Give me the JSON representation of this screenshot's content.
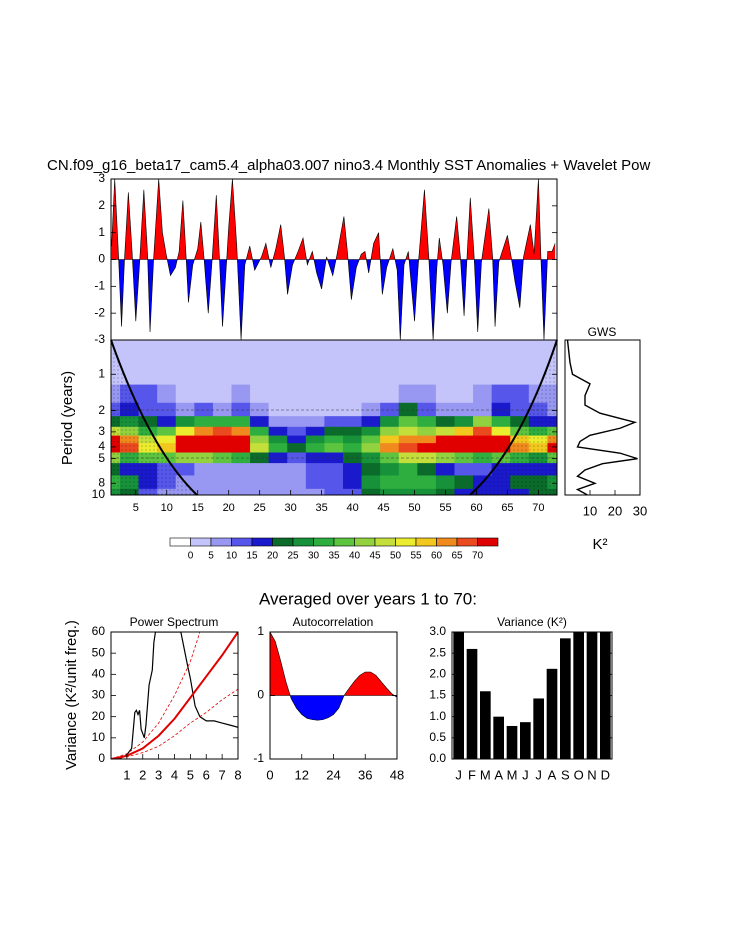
{
  "section_title": "Averaged over years 1 to 70:",
  "chart_data": [
    {
      "type": "area",
      "title": "CN.f09_g16_beta17_cam5.4_alpha03.007 nino3.4 Monthly SST Anomalies + Wavelet Pow",
      "positive_color": "#ff0000",
      "negative_color": "#0000ff",
      "xlim": [
        1,
        73
      ],
      "ylim": [
        -3,
        3
      ],
      "yticks": [
        -3,
        -2,
        -1,
        0,
        1,
        2,
        3
      ],
      "x": [
        1.1,
        1.6,
        2.2,
        2.7,
        3.2,
        3.8,
        4.4,
        5.0,
        5.6,
        6.3,
        6.9,
        7.3,
        7.9,
        8.7,
        9.3,
        9.9,
        10.6,
        11.4,
        12.0,
        12.6,
        13.1,
        13.5,
        14.2,
        15.0,
        15.5,
        16.0,
        16.7,
        17.3,
        18.0,
        18.5,
        19.0,
        19.6,
        20.0,
        20.6,
        21.3,
        22.0,
        22.6,
        23.4,
        24.2,
        25.3,
        26.0,
        26.8,
        27.6,
        28.4,
        29.0,
        29.5,
        30.3,
        31.2,
        32.0,
        32.7,
        33.5,
        34.2,
        35.0,
        35.8,
        36.8,
        37.5,
        38.6,
        39.2,
        39.8,
        40.6,
        41.4,
        42.0,
        42.6,
        43.4,
        44.2,
        44.8,
        45.5,
        46.5,
        47.2,
        47.7,
        48.3,
        49.0,
        50.0,
        50.6,
        51.6,
        52.3,
        53.0,
        53.6,
        54.0,
        54.6,
        55.3,
        55.9,
        56.8,
        57.4,
        58.0,
        58.5,
        59.0,
        59.6,
        60.2,
        60.8,
        62.0,
        62.6,
        63.0,
        63.6,
        65.0,
        65.6,
        66.2,
        67.0,
        67.6,
        68.7,
        69.3,
        70.0,
        70.4,
        70.9,
        71.5,
        72.2,
        72.7
      ],
      "values": [
        0.5,
        3,
        0.2,
        -2.5,
        0.1,
        2.5,
        0.3,
        -2.3,
        -0.2,
        2.6,
        0.2,
        -2.7,
        0.1,
        3,
        1,
        0.2,
        -0.6,
        -0.3,
        0.3,
        2.2,
        0.2,
        -1.6,
        -0.2,
        0.4,
        1.4,
        0.1,
        -2,
        -0.1,
        2.4,
        0.1,
        -2.5,
        -0.3,
        1.2,
        3,
        0.5,
        -3,
        -0.2,
        0.5,
        -0.4,
        0.1,
        0.6,
        -0.3,
        0.4,
        1.3,
        0.1,
        -1.3,
        -0.2,
        0.3,
        0.8,
        -0.2,
        0.3,
        -0.5,
        -1.1,
        0.1,
        -0.6,
        0.2,
        1.6,
        0.2,
        -1.5,
        -0.3,
        0.2,
        0.3,
        -0.5,
        0.6,
        1.0,
        -1.3,
        -0.3,
        0.4,
        -0.4,
        -3,
        -0.2,
        0.3,
        -2.3,
        -0.2,
        2.6,
        0.1,
        -3,
        -0.3,
        0.8,
        -0.2,
        -2,
        -0.1,
        1.6,
        0.1,
        -2.1,
        0.2,
        2.3,
        0.2,
        -2.7,
        -0.1,
        1.9,
        0.1,
        -2.5,
        -0.1,
        0.9,
        0.1,
        -0.8,
        -1.8,
        0.1,
        1.3,
        0.2,
        3,
        0.1,
        -3,
        0.3,
        0.3,
        0.6
      ]
    },
    {
      "type": "heatmap",
      "y_label": "Period (years)",
      "xlim": [
        1,
        73
      ],
      "xticks": [
        5,
        10,
        15,
        20,
        25,
        30,
        35,
        40,
        45,
        50,
        55,
        60,
        65,
        70
      ],
      "ylim": [
        0.52,
        10
      ],
      "log_y": true,
      "y_reversed": true,
      "yticks": [
        1,
        2,
        3,
        4,
        5,
        8,
        10
      ],
      "x": [
        1,
        4,
        7,
        10,
        13,
        16,
        19,
        22,
        25,
        28,
        31,
        34,
        37,
        40,
        43,
        46,
        49,
        52,
        55,
        58,
        61,
        64,
        67,
        70,
        73
      ],
      "periods": [
        1,
        1.5,
        2,
        2.5,
        3,
        3.5,
        4,
        5,
        6,
        8,
        10
      ],
      "z": [
        [
          3,
          3,
          3,
          3,
          3,
          3,
          3,
          3,
          3,
          3,
          3,
          3,
          3,
          3,
          3,
          3,
          3,
          3,
          3,
          3,
          3,
          3,
          3,
          3,
          3
        ],
        [
          8,
          14,
          12,
          6,
          4,
          4,
          4,
          6,
          4,
          3,
          3,
          3,
          3,
          3,
          3,
          4,
          8,
          6,
          4,
          4,
          6,
          14,
          12,
          8,
          6
        ],
        [
          10,
          18,
          14,
          12,
          8,
          12,
          8,
          10,
          6,
          4,
          3,
          4,
          4,
          4,
          6,
          12,
          20,
          10,
          8,
          6,
          8,
          18,
          14,
          12,
          8
        ],
        [
          20,
          25,
          20,
          15,
          25,
          30,
          30,
          30,
          15,
          8,
          6,
          8,
          10,
          12,
          15,
          25,
          35,
          30,
          20,
          25,
          40,
          30,
          20,
          15,
          15
        ],
        [
          45,
          40,
          30,
          35,
          50,
          60,
          65,
          60,
          30,
          15,
          10,
          15,
          20,
          20,
          25,
          40,
          45,
          40,
          45,
          55,
          65,
          50,
          35,
          30,
          35
        ],
        [
          70,
          60,
          45,
          50,
          70,
          75,
          75,
          70,
          40,
          25,
          18,
          25,
          30,
          28,
          35,
          55,
          60,
          60,
          70,
          72,
          75,
          70,
          55,
          50,
          60
        ],
        [
          75,
          65,
          50,
          55,
          72,
          75,
          75,
          72,
          45,
          30,
          20,
          30,
          35,
          30,
          40,
          60,
          65,
          70,
          72,
          75,
          75,
          72,
          60,
          55,
          72
        ],
        [
          40,
          30,
          35,
          35,
          40,
          40,
          35,
          30,
          20,
          15,
          12,
          15,
          18,
          20,
          25,
          35,
          45,
          45,
          40,
          35,
          30,
          35,
          30,
          25,
          35
        ],
        [
          20,
          15,
          15,
          12,
          10,
          8,
          8,
          8,
          8,
          8,
          8,
          10,
          12,
          15,
          20,
          25,
          30,
          20,
          15,
          12,
          12,
          15,
          15,
          15,
          18
        ],
        [
          30,
          25,
          15,
          10,
          8,
          6,
          6,
          6,
          6,
          6,
          8,
          10,
          14,
          18,
          25,
          30,
          32,
          30,
          25,
          20,
          18,
          18,
          20,
          22,
          25
        ],
        [
          25,
          20,
          12,
          8,
          6,
          5,
          5,
          5,
          5,
          5,
          6,
          8,
          10,
          14,
          20,
          25,
          25,
          25,
          22,
          18,
          15,
          15,
          18,
          20,
          22
        ]
      ],
      "levels": [
        0,
        5,
        10,
        15,
        20,
        25,
        30,
        35,
        40,
        45,
        50,
        55,
        60,
        65,
        70
      ],
      "colors": [
        "#ffffff",
        "#c4c4fa",
        "#9898f2",
        "#5656ea",
        "#1a1acc",
        "#0b6b2a",
        "#17923a",
        "#2eae3e",
        "#5cc43e",
        "#92d23e",
        "#c4de3a",
        "#ecec2e",
        "#f2c81e",
        "#f08a1e",
        "#ea4a1e",
        "#e00000"
      ]
    },
    {
      "type": "line",
      "orientation": "horizontal",
      "title": "GWS",
      "x_label": "K²",
      "xlim": [
        0,
        30
      ],
      "xticks": [
        10,
        20,
        30
      ],
      "ylim": [
        0.52,
        10
      ],
      "log_y": true,
      "y_reversed": true,
      "periods": [
        0.52,
        0.8,
        1,
        1.2,
        1.5,
        1.8,
        2.1,
        2.5,
        2.8,
        3.2,
        3.6,
        4.0,
        4.5,
        5.0,
        5.5,
        6.2,
        7,
        8,
        9,
        10
      ],
      "values": [
        1,
        2,
        3,
        10,
        8,
        8,
        14,
        28,
        22,
        10,
        6,
        5,
        22,
        29,
        15,
        8,
        5,
        12,
        5,
        9
      ],
      "color": "#000000"
    },
    {
      "type": "line",
      "title": "Power Spectrum",
      "y_label": "Variance (K²/unit freq.)",
      "xlim": [
        0,
        8
      ],
      "xticks": [
        1,
        2,
        3,
        4,
        5,
        6,
        7,
        8
      ],
      "ylim": [
        0,
        60
      ],
      "yticks": [
        0,
        10,
        20,
        30,
        40,
        50,
        60
      ],
      "series": [
        {
          "color": "#000000",
          "width": 1.2,
          "dash": false,
          "x": [
            0.5,
            1,
            1.3,
            1.5,
            1.6,
            1.7,
            1.8,
            1.9,
            2.0,
            2.1,
            2.2,
            2.4,
            2.6,
            2.7,
            2.8,
            4.4,
            4.8,
            5.0,
            5.3,
            5.6,
            6,
            6.5,
            7,
            7.5,
            8
          ],
          "values": [
            0,
            2,
            5,
            22,
            23,
            21,
            23,
            14,
            12,
            10,
            16,
            35,
            42,
            55,
            60,
            60,
            45,
            38,
            25,
            20,
            18,
            18,
            17,
            16,
            15
          ]
        },
        {
          "color": "#e00000",
          "width": 2,
          "dash": false,
          "x": [
            0,
            1,
            2,
            3,
            4,
            5,
            6,
            7,
            8
          ],
          "values": [
            0,
            1.5,
            5,
            11,
            19,
            29,
            39,
            49,
            60
          ]
        },
        {
          "color": "#e00000",
          "width": 0.8,
          "dash": true,
          "x": [
            0,
            1,
            2,
            3,
            4,
            5,
            5.6
          ],
          "values": [
            0,
            2.5,
            8,
            17,
            30,
            46,
            60
          ]
        },
        {
          "color": "#e00000",
          "width": 0.8,
          "dash": true,
          "x": [
            0,
            1,
            2,
            3,
            4,
            5,
            6,
            7,
            8
          ],
          "values": [
            0,
            1,
            3,
            6,
            11,
            17,
            22,
            28,
            33
          ]
        }
      ]
    },
    {
      "type": "area",
      "title": "Autocorrelation",
      "positive_color": "#ff0000",
      "negative_color": "#0000ff",
      "xlim": [
        0,
        48
      ],
      "xticks": [
        0,
        12,
        24,
        36,
        48
      ],
      "ylim": [
        -1,
        1
      ],
      "yticks": [
        -1,
        0,
        1
      ],
      "x": [
        0,
        2,
        4,
        6,
        8,
        10,
        12,
        14,
        16,
        18,
        20,
        22,
        24,
        26,
        28,
        30,
        32,
        34,
        36,
        38,
        40,
        42,
        44,
        46,
        48
      ],
      "values": [
        1,
        0.85,
        0.55,
        0.22,
        -0.05,
        -0.2,
        -0.3,
        -0.36,
        -0.38,
        -0.39,
        -0.38,
        -0.35,
        -0.3,
        -0.2,
        0,
        0.12,
        0.23,
        0.32,
        0.37,
        0.37,
        0.32,
        0.22,
        0.12,
        0.03,
        -0.03
      ]
    },
    {
      "type": "bar",
      "title": "Variance (K²)",
      "color": "#000000",
      "ylim": [
        0,
        3
      ],
      "yticks": [
        {
          "value": 0,
          "label": "0.0"
        },
        0.5,
        {
          "value": 1,
          "label": "1.0"
        },
        1.5,
        {
          "value": 2,
          "label": "2.0"
        },
        2.5,
        {
          "value": 3,
          "label": "3.0"
        }
      ],
      "categories": [
        "J",
        "F",
        "M",
        "A",
        "M",
        "J",
        "J",
        "A",
        "S",
        "O",
        "N",
        "D"
      ],
      "values": [
        3,
        2.6,
        1.6,
        1.0,
        0.78,
        0.87,
        1.43,
        2.13,
        2.85,
        3,
        3,
        3
      ]
    }
  ]
}
